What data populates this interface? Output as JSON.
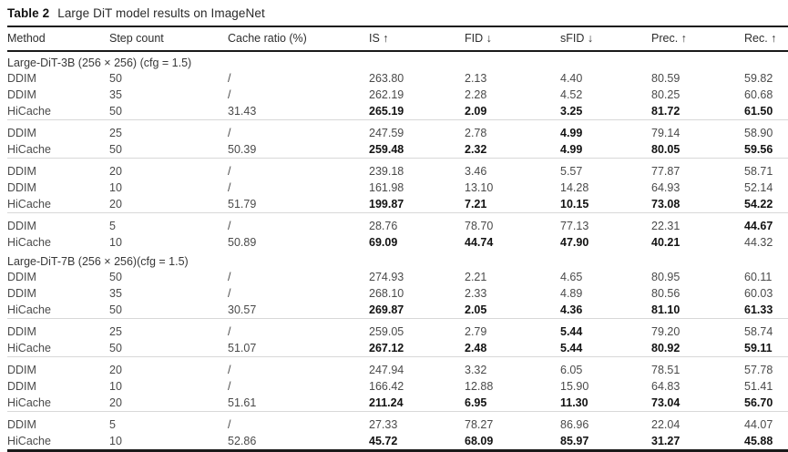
{
  "table": {
    "title_label": "Table 2",
    "title_text": "Large DiT model results on ImageNet",
    "columns": [
      "Method",
      "Step count",
      "Cache ratio (%)",
      "IS ↑",
      "FID ↓",
      "sFID ↓",
      "Prec. ↑",
      "Rec. ↑"
    ],
    "sections": [
      {
        "header": "Large-DiT-3B (256 × 256) (cfg = 1.5)",
        "groups": [
          {
            "rows": [
              {
                "cells": [
                  "DDIM",
                  "50",
                  "/",
                  "263.80",
                  "2.13",
                  "4.40",
                  "80.59",
                  "59.82"
                ],
                "bold": []
              },
              {
                "cells": [
                  "DDIM",
                  "35",
                  "/",
                  "262.19",
                  "2.28",
                  "4.52",
                  "80.25",
                  "60.68"
                ],
                "bold": []
              },
              {
                "cells": [
                  "HiCache",
                  "50",
                  "31.43",
                  "265.19",
                  "2.09",
                  "3.25",
                  "81.72",
                  "61.50"
                ],
                "bold": [
                  3,
                  4,
                  5,
                  6,
                  7
                ]
              }
            ]
          },
          {
            "rows": [
              {
                "cells": [
                  "DDIM",
                  "25",
                  "/",
                  "247.59",
                  "2.78",
                  "4.99",
                  "79.14",
                  "58.90"
                ],
                "bold": [
                  5
                ]
              },
              {
                "cells": [
                  "HiCache",
                  "50",
                  "50.39",
                  "259.48",
                  "2.32",
                  "4.99",
                  "80.05",
                  "59.56"
                ],
                "bold": [
                  3,
                  4,
                  5,
                  6,
                  7
                ]
              }
            ]
          },
          {
            "rows": [
              {
                "cells": [
                  "DDIM",
                  "20",
                  "/",
                  "239.18",
                  "3.46",
                  "5.57",
                  "77.87",
                  "58.71"
                ],
                "bold": []
              },
              {
                "cells": [
                  "DDIM",
                  "10",
                  "/",
                  "161.98",
                  "13.10",
                  "14.28",
                  "64.93",
                  "52.14"
                ],
                "bold": []
              },
              {
                "cells": [
                  "HiCache",
                  "20",
                  "51.79",
                  "199.87",
                  "7.21",
                  "10.15",
                  "73.08",
                  "54.22"
                ],
                "bold": [
                  3,
                  4,
                  5,
                  6,
                  7
                ]
              }
            ]
          },
          {
            "rows": [
              {
                "cells": [
                  "DDIM",
                  "5",
                  "/",
                  "28.76",
                  "78.70",
                  "77.13",
                  "22.31",
                  "44.67"
                ],
                "bold": [
                  7
                ]
              },
              {
                "cells": [
                  "HiCache",
                  "10",
                  "50.89",
                  "69.09",
                  "44.74",
                  "47.90",
                  "40.21",
                  "44.32"
                ],
                "bold": [
                  3,
                  4,
                  5,
                  6
                ]
              }
            ]
          }
        ]
      },
      {
        "header": "Large-DiT-7B (256 × 256)(cfg = 1.5)",
        "groups": [
          {
            "rows": [
              {
                "cells": [
                  "DDIM",
                  "50",
                  "/",
                  "274.93",
                  "2.21",
                  "4.65",
                  "80.95",
                  "60.11"
                ],
                "bold": []
              },
              {
                "cells": [
                  "DDIM",
                  "35",
                  "/",
                  "268.10",
                  "2.33",
                  "4.89",
                  "80.56",
                  "60.03"
                ],
                "bold": []
              },
              {
                "cells": [
                  "HiCache",
                  "50",
                  "30.57",
                  "269.87",
                  "2.05",
                  "4.36",
                  "81.10",
                  "61.33"
                ],
                "bold": [
                  3,
                  4,
                  5,
                  6,
                  7
                ]
              }
            ]
          },
          {
            "rows": [
              {
                "cells": [
                  "DDIM",
                  "25",
                  "/",
                  "259.05",
                  "2.79",
                  "5.44",
                  "79.20",
                  "58.74"
                ],
                "bold": [
                  5
                ]
              },
              {
                "cells": [
                  "HiCache",
                  "50",
                  "51.07",
                  "267.12",
                  "2.48",
                  "5.44",
                  "80.92",
                  "59.11"
                ],
                "bold": [
                  3,
                  4,
                  5,
                  6,
                  7
                ]
              }
            ]
          },
          {
            "rows": [
              {
                "cells": [
                  "DDIM",
                  "20",
                  "/",
                  "247.94",
                  "3.32",
                  "6.05",
                  "78.51",
                  "57.78"
                ],
                "bold": []
              },
              {
                "cells": [
                  "DDIM",
                  "10",
                  "/",
                  "166.42",
                  "12.88",
                  "15.90",
                  "64.83",
                  "51.41"
                ],
                "bold": []
              },
              {
                "cells": [
                  "HiCache",
                  "20",
                  "51.61",
                  "211.24",
                  "6.95",
                  "11.30",
                  "73.04",
                  "56.70"
                ],
                "bold": [
                  3,
                  4,
                  5,
                  6,
                  7
                ]
              }
            ]
          },
          {
            "rows": [
              {
                "cells": [
                  "DDIM",
                  "5",
                  "/",
                  "27.33",
                  "78.27",
                  "86.96",
                  "22.04",
                  "44.07"
                ],
                "bold": []
              },
              {
                "cells": [
                  "HiCache",
                  "10",
                  "52.86",
                  "45.72",
                  "68.09",
                  "85.97",
                  "31.27",
                  "45.88"
                ],
                "bold": [
                  3,
                  4,
                  5,
                  6,
                  7
                ]
              }
            ]
          }
        ]
      }
    ]
  }
}
